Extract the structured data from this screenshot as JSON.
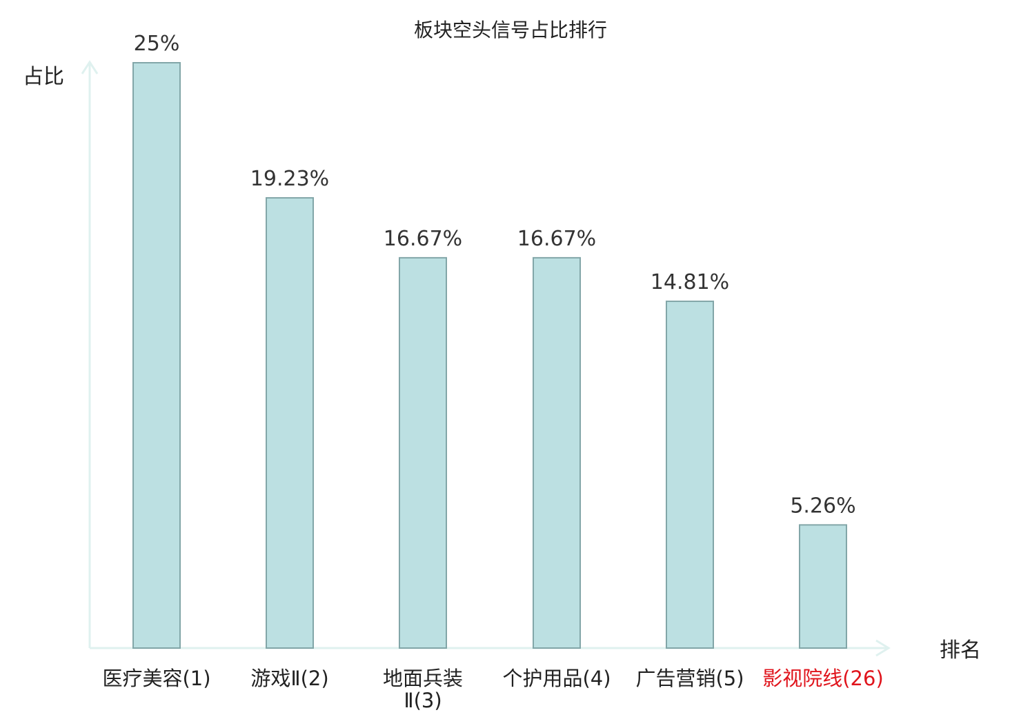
{
  "chart_data": {
    "type": "bar",
    "title": "板块空头信号占比排行",
    "ylabel": "占比",
    "xlabel": "排名",
    "categories": [
      "医疗美容(1)",
      "游戏Ⅱ(2)",
      "地面兵装Ⅱ(3)",
      "个护用品(4)",
      "广告营销(5)",
      "影视院线(26)"
    ],
    "category_lines": [
      [
        "医疗美容(1)"
      ],
      [
        "游戏Ⅱ(2)"
      ],
      [
        "地面兵装",
        "Ⅱ(3)"
      ],
      [
        "个护用品(4)"
      ],
      [
        "广告营销(5)"
      ],
      [
        "影视院线(26)"
      ]
    ],
    "highlight_index": 5,
    "values": [
      25,
      19.23,
      16.67,
      16.67,
      14.81,
      5.26
    ],
    "value_labels": [
      "25%",
      "19.23%",
      "16.67%",
      "16.67%",
      "14.81%",
      "5.26%"
    ],
    "ylim": [
      0,
      25
    ],
    "grid": false,
    "colors": {
      "bar_fill": "#bce0e2",
      "bar_stroke": "#82a6a8",
      "axis": "#dff1ef",
      "text": "#222222",
      "highlight": "#e0141c"
    }
  }
}
